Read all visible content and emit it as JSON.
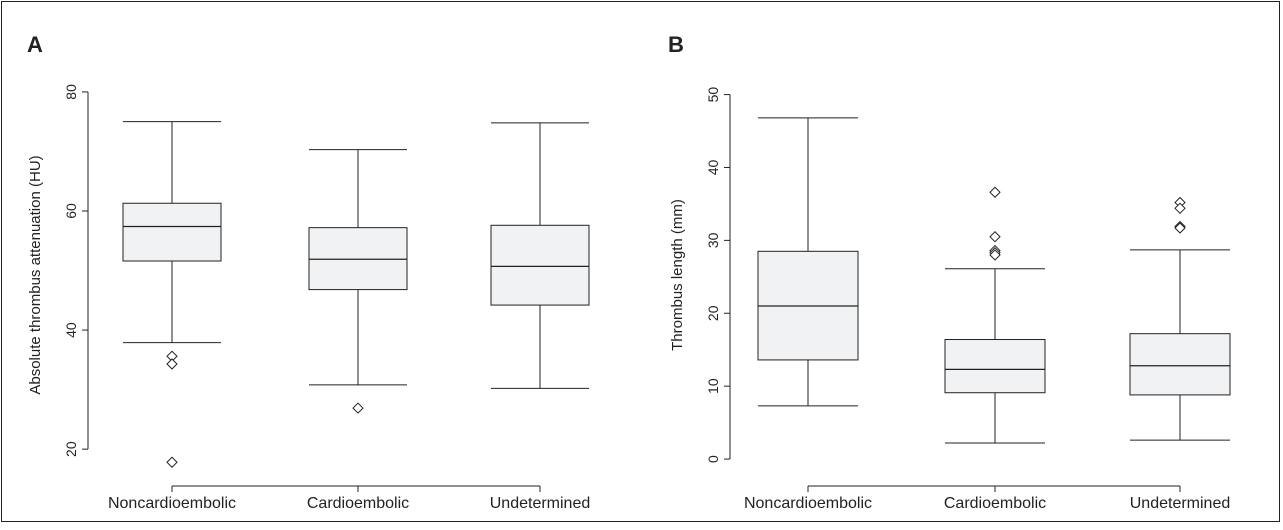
{
  "chart_data": [
    {
      "type": "boxplot",
      "panel": "A",
      "ylabel": "Absolute thrombus attenuation (HU)",
      "categories": [
        "Noncardioembolic",
        "Cardioembolic",
        "Undetermined"
      ],
      "yticks": [
        20,
        40,
        60,
        80
      ],
      "ylim": [
        16.5,
        82
      ],
      "boxes": [
        {
          "whisker_low": 37.9,
          "q1": 51.6,
          "median": 57.4,
          "q3": 61.3,
          "whisker_high": 75.0,
          "outliers": [
            35.6,
            34.3,
            17.8
          ]
        },
        {
          "whisker_low": 30.8,
          "q1": 46.8,
          "median": 51.9,
          "q3": 57.2,
          "whisker_high": 70.3,
          "outliers": [
            26.9
          ]
        },
        {
          "whisker_low": 30.2,
          "q1": 44.2,
          "median": 50.7,
          "q3": 57.6,
          "whisker_high": 74.8,
          "outliers": []
        }
      ]
    },
    {
      "type": "boxplot",
      "panel": "B",
      "ylabel": "Thrombus length (mm)",
      "categories": [
        "Noncardioembolic",
        "Cardioembolic",
        "Undetermined"
      ],
      "yticks": [
        0,
        10,
        20,
        30,
        40,
        50
      ],
      "ylim": [
        -1.5,
        52
      ],
      "boxes": [
        {
          "whisker_low": 7.3,
          "q1": 13.6,
          "median": 21.0,
          "q3": 28.5,
          "whisker_high": 46.8,
          "outliers": []
        },
        {
          "whisker_low": 2.2,
          "q1": 9.1,
          "median": 12.3,
          "q3": 16.4,
          "whisker_high": 26.1,
          "outliers": [
            36.6,
            30.5,
            28.6,
            28.3,
            28.0
          ]
        },
        {
          "whisker_low": 2.6,
          "q1": 8.8,
          "median": 12.8,
          "q3": 17.2,
          "whisker_high": 28.7,
          "outliers": [
            35.2,
            34.4,
            31.9,
            31.7
          ]
        }
      ]
    }
  ],
  "style": {
    "box_fill": "#f1f2f4",
    "line_color": "#222222"
  }
}
